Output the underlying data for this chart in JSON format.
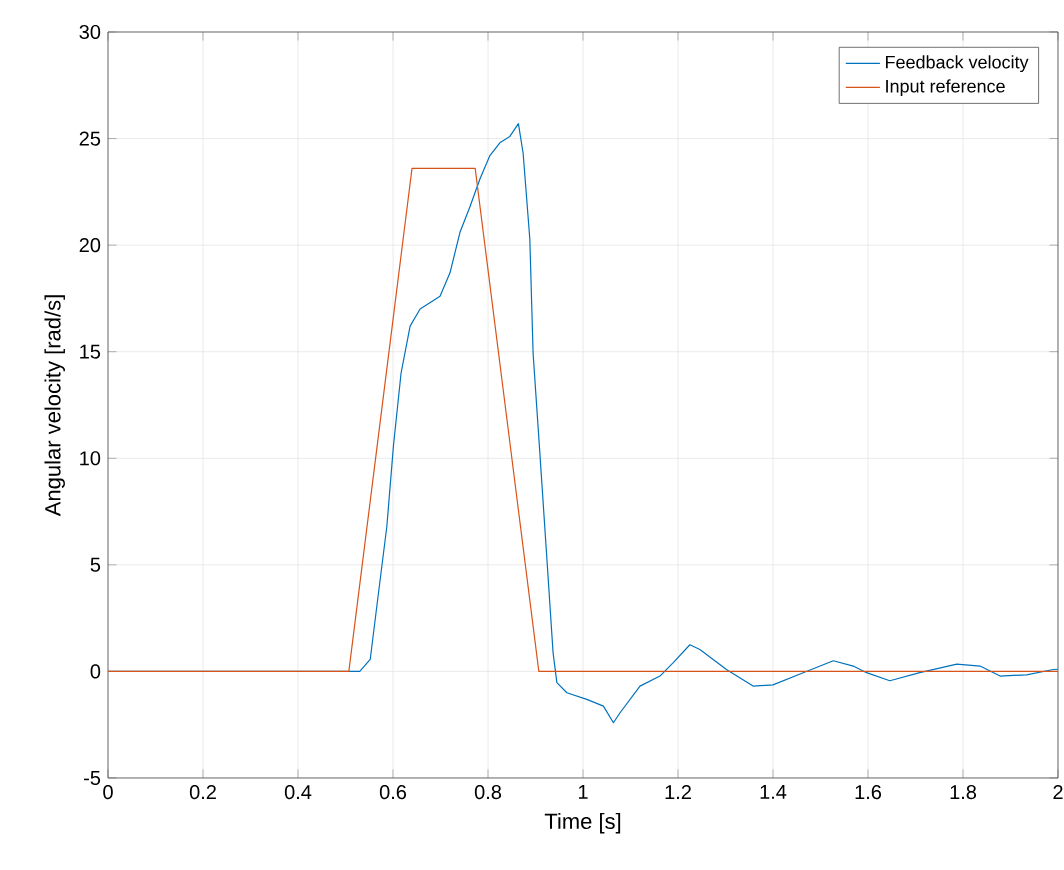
{
  "chart_data": {
    "type": "line",
    "xlabel": "Time [s]",
    "ylabel": "Angular velocity [rad/s]",
    "xlim": [
      0,
      2
    ],
    "ylim": [
      -5,
      30
    ],
    "xticks": [
      0,
      0.2,
      0.4,
      0.6,
      0.8,
      1,
      1.2,
      1.4,
      1.6,
      1.8,
      2
    ],
    "yticks": [
      -5,
      0,
      5,
      10,
      15,
      20,
      25,
      30
    ],
    "grid": true,
    "legend": "top right",
    "line_style": "solid",
    "marker": "none",
    "series": [
      {
        "name": "Feedback velocity",
        "color": "#0072bd",
        "x": [
          0,
          0.53,
          0.552,
          0.566,
          0.587,
          0.601,
          0.617,
          0.636,
          0.657,
          0.699,
          0.72,
          0.741,
          0.762,
          0.783,
          0.804,
          0.825,
          0.846,
          0.864,
          0.874,
          0.888,
          0.895,
          0.909,
          0.923,
          0.937,
          0.945,
          0.966,
          1.008,
          1.043,
          1.064,
          1.078,
          1.12,
          1.162,
          1.19,
          1.225,
          1.246,
          1.302,
          1.358,
          1.4,
          1.457,
          1.527,
          1.569,
          1.597,
          1.646,
          1.709,
          1.787,
          1.836,
          1.878,
          1.934,
          1.99,
          2
        ],
        "values": [
          0,
          0,
          0.56,
          3.07,
          6.8,
          10.6,
          14.0,
          16.2,
          17.0,
          17.6,
          18.7,
          20.6,
          21.8,
          23.1,
          24.2,
          24.8,
          25.1,
          25.7,
          24.3,
          20.3,
          14.9,
          10.3,
          5.6,
          0.87,
          -0.53,
          -1.0,
          -1.31,
          -1.63,
          -2.41,
          -1.94,
          -0.69,
          -0.22,
          0.41,
          1.25,
          1.03,
          0.09,
          -0.69,
          -0.63,
          -0.12,
          0.5,
          0.25,
          -0.06,
          -0.44,
          -0.06,
          0.34,
          0.25,
          -0.22,
          -0.16,
          0.09,
          0.1
        ]
      },
      {
        "name": "Input reference",
        "color": "#d95319",
        "x": [
          0,
          0.507,
          0.64,
          0.773,
          0.907,
          2
        ],
        "values": [
          0,
          0,
          23.6,
          23.6,
          0,
          0
        ]
      }
    ]
  }
}
